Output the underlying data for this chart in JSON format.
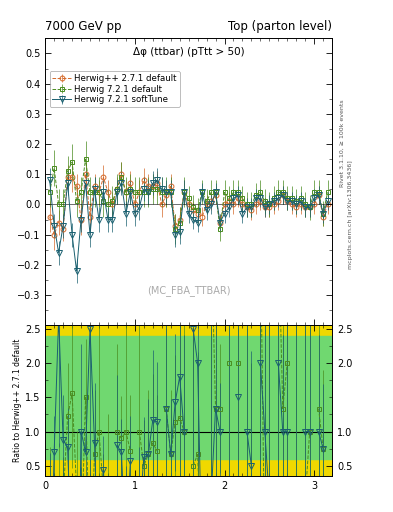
{
  "title_left": "7000 GeV pp",
  "title_right": "Top (parton level)",
  "plot_title": "Δφ (ttbar) (pTtt > 50)",
  "watermark": "(MC_FBA_TTBAR)",
  "right_label_top": "Rivet 3.1.10, ≥ 100k events",
  "right_label_mid": "mcplots.cern.ch [arXiv:1306.3436]",
  "xlabel": "",
  "ylabel_ratio": "Ratio to Herwig++ 2.7.1 default",
  "xlim": [
    0,
    3.2
  ],
  "ylim_main": [
    -0.4,
    0.55
  ],
  "ylim_ratio": [
    0.35,
    2.55
  ],
  "yticks_main": [
    -0.3,
    -0.2,
    -0.1,
    0.0,
    0.1,
    0.2,
    0.3,
    0.4,
    0.5
  ],
  "yticks_ratio": [
    0.5,
    1.0,
    1.5,
    2.0,
    2.5
  ],
  "xticks": [
    0,
    1,
    2,
    3
  ],
  "series": [
    {
      "name": "Herwig++ 2.7.1 default",
      "color": "#d4692a",
      "marker": "o",
      "linestyle": "--",
      "markersize": 3.5,
      "x": [
        0.05,
        0.1,
        0.15,
        0.2,
        0.25,
        0.3,
        0.35,
        0.4,
        0.45,
        0.5,
        0.55,
        0.6,
        0.65,
        0.7,
        0.75,
        0.8,
        0.85,
        0.9,
        0.95,
        1.0,
        1.05,
        1.1,
        1.15,
        1.2,
        1.25,
        1.3,
        1.35,
        1.4,
        1.45,
        1.5,
        1.55,
        1.6,
        1.65,
        1.7,
        1.75,
        1.8,
        1.85,
        1.9,
        1.95,
        2.0,
        2.05,
        2.1,
        2.15,
        2.2,
        2.25,
        2.3,
        2.35,
        2.4,
        2.45,
        2.5,
        2.55,
        2.6,
        2.65,
        2.7,
        2.75,
        2.8,
        2.85,
        2.9,
        2.95,
        3.0,
        3.05,
        3.1,
        3.15
      ],
      "y": [
        -0.04,
        -0.1,
        -0.06,
        -0.08,
        0.09,
        0.09,
        0.06,
        -0.05,
        0.1,
        -0.04,
        0.06,
        0.04,
        0.09,
        0.04,
        0.0,
        0.05,
        0.1,
        0.04,
        0.07,
        0.0,
        0.04,
        0.08,
        0.06,
        0.06,
        0.07,
        0.0,
        0.03,
        0.06,
        -0.07,
        -0.05,
        0.04,
        0.0,
        -0.02,
        -0.03,
        -0.04,
        0.0,
        0.01,
        0.03,
        -0.06,
        0.0,
        0.01,
        0.0,
        0.02,
        0.0,
        -0.01,
        -0.02,
        0.0,
        0.01,
        -0.01,
        -0.01,
        0.0,
        0.01,
        0.03,
        0.01,
        0.0,
        -0.01,
        0.0,
        -0.01,
        -0.01,
        0.0,
        0.03,
        -0.04,
        0.0
      ],
      "yerr": [
        0.05,
        0.05,
        0.04,
        0.04,
        0.04,
        0.05,
        0.04,
        0.05,
        0.04,
        0.04,
        0.04,
        0.04,
        0.04,
        0.04,
        0.04,
        0.04,
        0.04,
        0.04,
        0.04,
        0.04,
        0.04,
        0.04,
        0.04,
        0.04,
        0.04,
        0.04,
        0.04,
        0.04,
        0.04,
        0.04,
        0.04,
        0.03,
        0.03,
        0.03,
        0.03,
        0.03,
        0.03,
        0.03,
        0.03,
        0.03,
        0.03,
        0.03,
        0.03,
        0.03,
        0.03,
        0.03,
        0.03,
        0.03,
        0.03,
        0.03,
        0.03,
        0.03,
        0.03,
        0.03,
        0.03,
        0.03,
        0.03,
        0.03,
        0.03,
        0.03,
        0.03,
        0.03,
        0.03
      ]
    },
    {
      "name": "Herwig 7.2.1 default",
      "color": "#4a8c20",
      "marker": "s",
      "linestyle": "--",
      "markersize": 3.5,
      "x": [
        0.05,
        0.1,
        0.15,
        0.2,
        0.25,
        0.3,
        0.35,
        0.4,
        0.45,
        0.5,
        0.55,
        0.6,
        0.65,
        0.7,
        0.75,
        0.8,
        0.85,
        0.9,
        0.95,
        1.0,
        1.05,
        1.1,
        1.15,
        1.2,
        1.25,
        1.3,
        1.35,
        1.4,
        1.45,
        1.5,
        1.55,
        1.6,
        1.65,
        1.7,
        1.75,
        1.8,
        1.85,
        1.9,
        1.95,
        2.0,
        2.05,
        2.1,
        2.15,
        2.2,
        2.25,
        2.3,
        2.35,
        2.4,
        2.45,
        2.5,
        2.55,
        2.6,
        2.65,
        2.7,
        2.75,
        2.8,
        2.85,
        2.9,
        2.95,
        3.0,
        3.05,
        3.1,
        3.15
      ],
      "y": [
        0.04,
        0.12,
        -0.0,
        0.0,
        0.11,
        0.14,
        0.01,
        0.04,
        0.15,
        0.04,
        0.04,
        0.04,
        0.01,
        0.0,
        0.01,
        0.05,
        0.09,
        0.04,
        0.05,
        0.04,
        0.04,
        0.04,
        0.04,
        0.05,
        0.05,
        0.04,
        0.04,
        0.04,
        -0.08,
        -0.06,
        0.04,
        0.02,
        -0.01,
        -0.02,
        0.04,
        0.01,
        0.04,
        0.04,
        -0.08,
        0.04,
        0.02,
        0.04,
        0.04,
        0.02,
        0.0,
        0.0,
        0.03,
        0.04,
        0.01,
        0.0,
        0.02,
        0.04,
        0.04,
        0.02,
        0.02,
        0.01,
        0.02,
        0.0,
        -0.01,
        0.04,
        0.04,
        -0.03,
        0.04
      ],
      "yerr": [
        0.05,
        0.06,
        0.05,
        0.05,
        0.05,
        0.06,
        0.05,
        0.05,
        0.06,
        0.05,
        0.05,
        0.05,
        0.05,
        0.05,
        0.05,
        0.05,
        0.05,
        0.05,
        0.05,
        0.05,
        0.05,
        0.05,
        0.05,
        0.05,
        0.05,
        0.05,
        0.05,
        0.05,
        0.05,
        0.05,
        0.05,
        0.04,
        0.04,
        0.04,
        0.04,
        0.04,
        0.04,
        0.04,
        0.04,
        0.04,
        0.04,
        0.04,
        0.04,
        0.04,
        0.04,
        0.04,
        0.04,
        0.04,
        0.04,
        0.04,
        0.04,
        0.04,
        0.04,
        0.04,
        0.04,
        0.04,
        0.04,
        0.04,
        0.04,
        0.04,
        0.04,
        0.04,
        0.04
      ]
    },
    {
      "name": "Herwig 7.2.1 softTune",
      "color": "#1a6070",
      "marker": "v",
      "linestyle": "-",
      "markersize": 4,
      "x": [
        0.05,
        0.1,
        0.15,
        0.2,
        0.25,
        0.3,
        0.35,
        0.4,
        0.45,
        0.5,
        0.55,
        0.6,
        0.65,
        0.7,
        0.75,
        0.8,
        0.85,
        0.9,
        0.95,
        1.0,
        1.05,
        1.1,
        1.15,
        1.2,
        1.25,
        1.3,
        1.35,
        1.4,
        1.45,
        1.5,
        1.55,
        1.6,
        1.65,
        1.7,
        1.75,
        1.8,
        1.85,
        1.9,
        1.95,
        2.0,
        2.05,
        2.1,
        2.15,
        2.2,
        2.25,
        2.3,
        2.35,
        2.4,
        2.45,
        2.5,
        2.55,
        2.6,
        2.65,
        2.7,
        2.75,
        2.8,
        2.85,
        2.9,
        2.95,
        3.0,
        3.05,
        3.1,
        3.15
      ],
      "y": [
        0.08,
        -0.07,
        -0.16,
        -0.07,
        0.07,
        -0.1,
        -0.22,
        -0.05,
        0.07,
        -0.1,
        0.05,
        -0.05,
        0.04,
        -0.05,
        -0.05,
        0.04,
        0.07,
        -0.03,
        0.04,
        -0.03,
        -0.01,
        0.05,
        0.04,
        0.07,
        0.08,
        0.05,
        0.04,
        0.04,
        -0.1,
        -0.09,
        0.04,
        -0.03,
        -0.05,
        -0.06,
        0.04,
        -0.02,
        0.0,
        0.04,
        -0.06,
        -0.03,
        -0.01,
        0.02,
        0.03,
        -0.03,
        -0.01,
        -0.01,
        0.02,
        0.02,
        -0.01,
        0.0,
        0.01,
        0.02,
        0.03,
        0.01,
        0.01,
        0.0,
        0.01,
        -0.01,
        -0.01,
        0.02,
        0.03,
        -0.03,
        0.01
      ],
      "yerr": [
        0.04,
        0.04,
        0.04,
        0.04,
        0.04,
        0.04,
        0.04,
        0.04,
        0.04,
        0.04,
        0.04,
        0.04,
        0.04,
        0.04,
        0.04,
        0.04,
        0.04,
        0.04,
        0.04,
        0.04,
        0.04,
        0.04,
        0.04,
        0.04,
        0.04,
        0.04,
        0.04,
        0.04,
        0.04,
        0.04,
        0.04,
        0.03,
        0.03,
        0.03,
        0.03,
        0.03,
        0.03,
        0.03,
        0.03,
        0.03,
        0.03,
        0.03,
        0.03,
        0.03,
        0.03,
        0.03,
        0.03,
        0.03,
        0.03,
        0.03,
        0.03,
        0.03,
        0.03,
        0.03,
        0.03,
        0.03,
        0.03,
        0.03,
        0.03,
        0.03,
        0.03,
        0.03,
        0.03
      ]
    }
  ]
}
